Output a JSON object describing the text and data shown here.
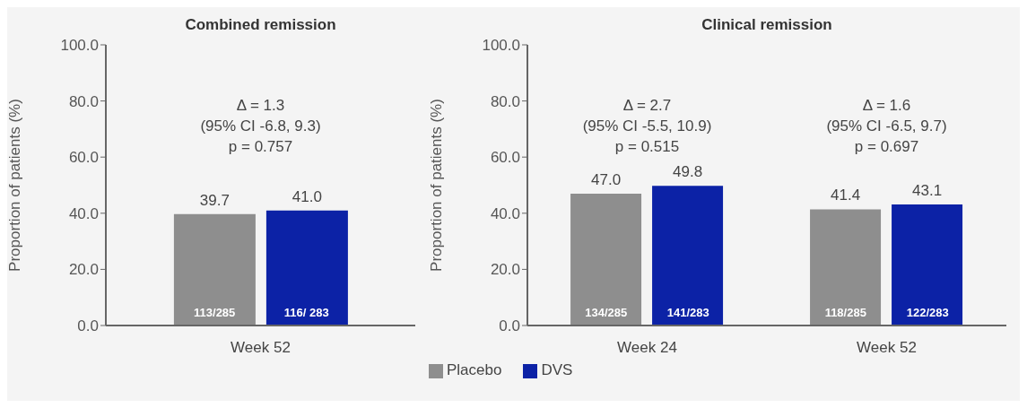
{
  "chart_data": [
    {
      "type": "bar",
      "title": "Combined remission",
      "ylabel": "Proportion of patients (%)",
      "categories": [
        "Week 52"
      ],
      "series": [
        {
          "color": "#8e8e8e",
          "values": [
            39.7
          ],
          "value_labels": [
            "39.7"
          ]
        },
        {
          "color": "#0c22a6",
          "values": [
            41.0
          ],
          "value_labels": [
            "41.0"
          ]
        }
      ],
      "ylim": [
        0,
        100
      ],
      "yticks": [
        {
          "value": 0,
          "label": "0.0"
        },
        {
          "value": 20,
          "label": "20.0"
        },
        {
          "value": 40,
          "label": "40.0"
        },
        {
          "value": 60,
          "label": "60.0"
        },
        {
          "value": 80,
          "label": "80.0"
        },
        {
          "value": 100,
          "label": "100.0"
        }
      ],
      "grid": false,
      "annotations": [
        "Δ = 1.3\n(95% CI -6.8, 9.3)\np = 0.757",
        "113/285",
        "116/ 283"
      ]
    },
    {
      "type": "bar",
      "title": "Clinical remission",
      "ylabel": "Proportion of patients (%)",
      "categories": [
        "Week 24",
        "Week 52"
      ],
      "series": [
        {
          "name": "Placebo",
          "color": "#8e8e8e",
          "values": [
            47.0,
            41.4
          ],
          "value_labels": [
            "47.0",
            "41.4"
          ]
        },
        {
          "name": "DVS",
          "color": "#0c22a6",
          "values": [
            49.8,
            43.1
          ],
          "value_labels": [
            "49.8",
            "43.1"
          ]
        }
      ],
      "ylim": [
        0,
        100
      ],
      "yticks": [
        {
          "value": 0,
          "label": "0.0"
        },
        {
          "value": 20,
          "label": "20.0"
        },
        {
          "value": 40,
          "label": "40.0"
        },
        {
          "value": 60,
          "label": "60.0"
        },
        {
          "value": 80,
          "label": "80.0"
        },
        {
          "value": 100,
          "label": "100.0"
        }
      ],
      "grid": false,
      "legend": "bottom left",
      "annotations": [
        "Δ = 2.7\n(95% CI -5.5, 10.9)\np = 0.515",
        "Δ = 1.6\n(95% CI -6.5, 9.7)\np = 0.697",
        "134/285",
        "141/283",
        "118/285",
        "122/283"
      ]
    }
  ]
}
